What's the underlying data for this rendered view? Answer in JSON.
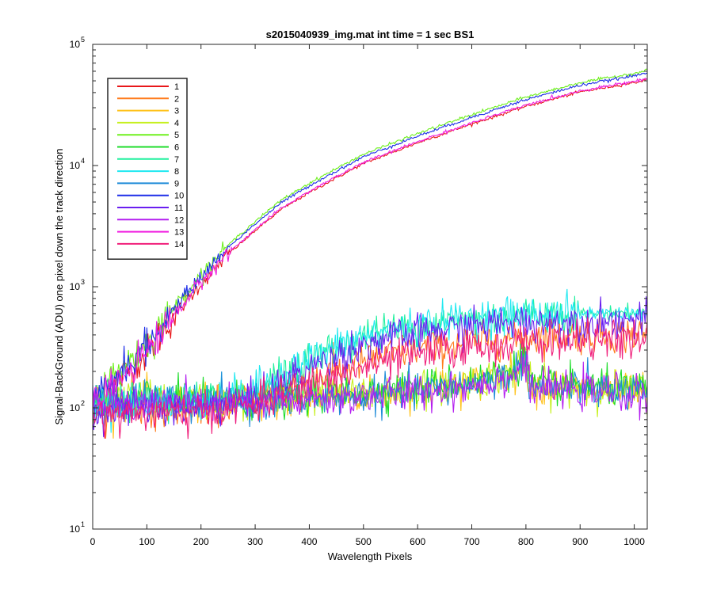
{
  "chart_data": {
    "type": "line",
    "title": "s2015040939_img.mat int time = 1 sec   BS1",
    "xlabel": "Wavelength Pixels",
    "ylabel": "Signal-BackGround (ADU) one pixel down the track direction",
    "xlim": [
      0,
      1024
    ],
    "ylim": [
      10,
      100000
    ],
    "yscale": "log",
    "grid": false,
    "legend_position": "top-left",
    "x_ticks": [
      "0",
      "100",
      "200",
      "300",
      "400",
      "500",
      "600",
      "700",
      "800",
      "900",
      "1000"
    ],
    "y_ticks": [
      {
        "base": "10",
        "exp": "1"
      },
      {
        "base": "10",
        "exp": "2"
      },
      {
        "base": "10",
        "exp": "3"
      },
      {
        "base": "10",
        "exp": "4"
      },
      {
        "base": "10",
        "exp": "5"
      }
    ],
    "series": [
      {
        "name": "1",
        "color": "#e8171a",
        "profile": "high",
        "scale": 0.88
      },
      {
        "name": "2",
        "color": "#ff7b1c",
        "profile": "mid",
        "scale": 1.0
      },
      {
        "name": "3",
        "color": "#ffc21a",
        "profile": "low",
        "scale": 1.0
      },
      {
        "name": "4",
        "color": "#c6f01e",
        "profile": "low",
        "scale": 1.02
      },
      {
        "name": "5",
        "color": "#6ff01e",
        "profile": "high",
        "scale": 1.05
      },
      {
        "name": "6",
        "color": "#1edc2b",
        "profile": "low",
        "scale": 1.05
      },
      {
        "name": "7",
        "color": "#1ef09e",
        "profile": "upper",
        "scale": 1.0
      },
      {
        "name": "8",
        "color": "#1ee8f0",
        "profile": "upper",
        "scale": 1.0
      },
      {
        "name": "9",
        "color": "#1e8bd8",
        "profile": "low",
        "scale": 0.98
      },
      {
        "name": "10",
        "color": "#1e2ee8",
        "profile": "high",
        "scale": 1.0
      },
      {
        "name": "11",
        "color": "#6a1ef0",
        "profile": "upper",
        "scale": 0.86
      },
      {
        "name": "12",
        "color": "#b41ef0",
        "profile": "low",
        "scale": 0.96
      },
      {
        "name": "13",
        "color": "#f01ee0",
        "profile": "high",
        "scale": 0.9
      },
      {
        "name": "14",
        "color": "#f01e7a",
        "profile": "mid",
        "scale": 0.9
      }
    ],
    "profiles": {
      "high": {
        "x": [
          0,
          50,
          100,
          150,
          200,
          250,
          300,
          350,
          400,
          450,
          500,
          600,
          700,
          800,
          900,
          1000,
          1024
        ],
        "y": [
          110,
          200,
          320,
          650,
          1200,
          2100,
          3300,
          5000,
          6800,
          9000,
          11800,
          17500,
          25000,
          35000,
          46000,
          55000,
          58000
        ]
      },
      "upper": {
        "x": [
          0,
          100,
          200,
          300,
          400,
          500,
          600,
          700,
          800,
          900,
          1000,
          1024
        ],
        "y": [
          110,
          115,
          115,
          140,
          250,
          390,
          480,
          550,
          590,
          600,
          610,
          615
        ]
      },
      "mid": {
        "x": [
          0,
          100,
          200,
          300,
          400,
          500,
          600,
          700,
          800,
          900,
          1000,
          1024
        ],
        "y": [
          100,
          100,
          100,
          120,
          170,
          240,
          310,
          350,
          385,
          400,
          405,
          405
        ]
      },
      "low": {
        "x": [
          0,
          100,
          200,
          300,
          400,
          500,
          600,
          700,
          780,
          795,
          810,
          900,
          1000,
          1024
        ],
        "y": [
          110,
          115,
          110,
          110,
          120,
          130,
          140,
          160,
          195,
          270,
          150,
          145,
          135,
          130
        ]
      }
    }
  }
}
